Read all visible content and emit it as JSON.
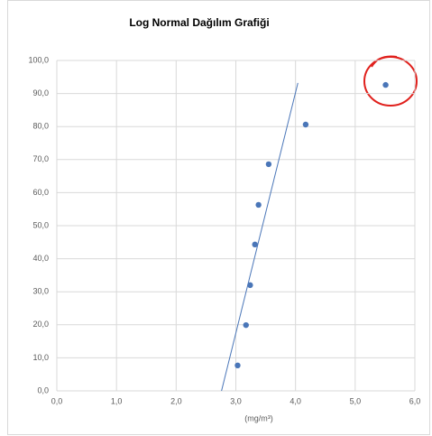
{
  "chart_data": {
    "type": "scatter",
    "title": "Log Normal Dağılım Grafiği",
    "xlabel": "(mg/m³)",
    "x": [
      3.03,
      3.17,
      3.24,
      3.32,
      3.38,
      3.55,
      4.17,
      5.51
    ],
    "values": [
      7.7,
      19.9,
      32.0,
      44.3,
      56.3,
      68.6,
      80.6,
      92.6
    ],
    "color": "#4a76b8",
    "trendline": {
      "x": [
        2.76,
        4.04
      ],
      "values": [
        0,
        93.2
      ],
      "color": "#4a76b8"
    },
    "xlim": [
      0,
      6
    ],
    "ylim": [
      0,
      100
    ],
    "xticks": [
      {
        "value": 0,
        "label": "0,0"
      },
      {
        "value": 1,
        "label": "1,0"
      },
      {
        "value": 2,
        "label": "2,0"
      },
      {
        "value": 3,
        "label": "3,0"
      },
      {
        "value": 4,
        "label": "4,0"
      },
      {
        "value": 5,
        "label": "5,0"
      },
      {
        "value": 6,
        "label": "6,0"
      }
    ],
    "yticks": [
      {
        "value": 0,
        "label": "0,0"
      },
      {
        "value": 10,
        "label": "10,0"
      },
      {
        "value": 20,
        "label": "20,0"
      },
      {
        "value": 30,
        "label": "30,0"
      },
      {
        "value": 40,
        "label": "40,0"
      },
      {
        "value": 50,
        "label": "50,0"
      },
      {
        "value": 60,
        "label": "60,0"
      },
      {
        "value": 70,
        "label": "70,0"
      },
      {
        "value": 80,
        "label": "80,0"
      },
      {
        "value": 90,
        "label": "90,0"
      },
      {
        "value": 100,
        "label": "100,0"
      }
    ],
    "grid": true
  }
}
